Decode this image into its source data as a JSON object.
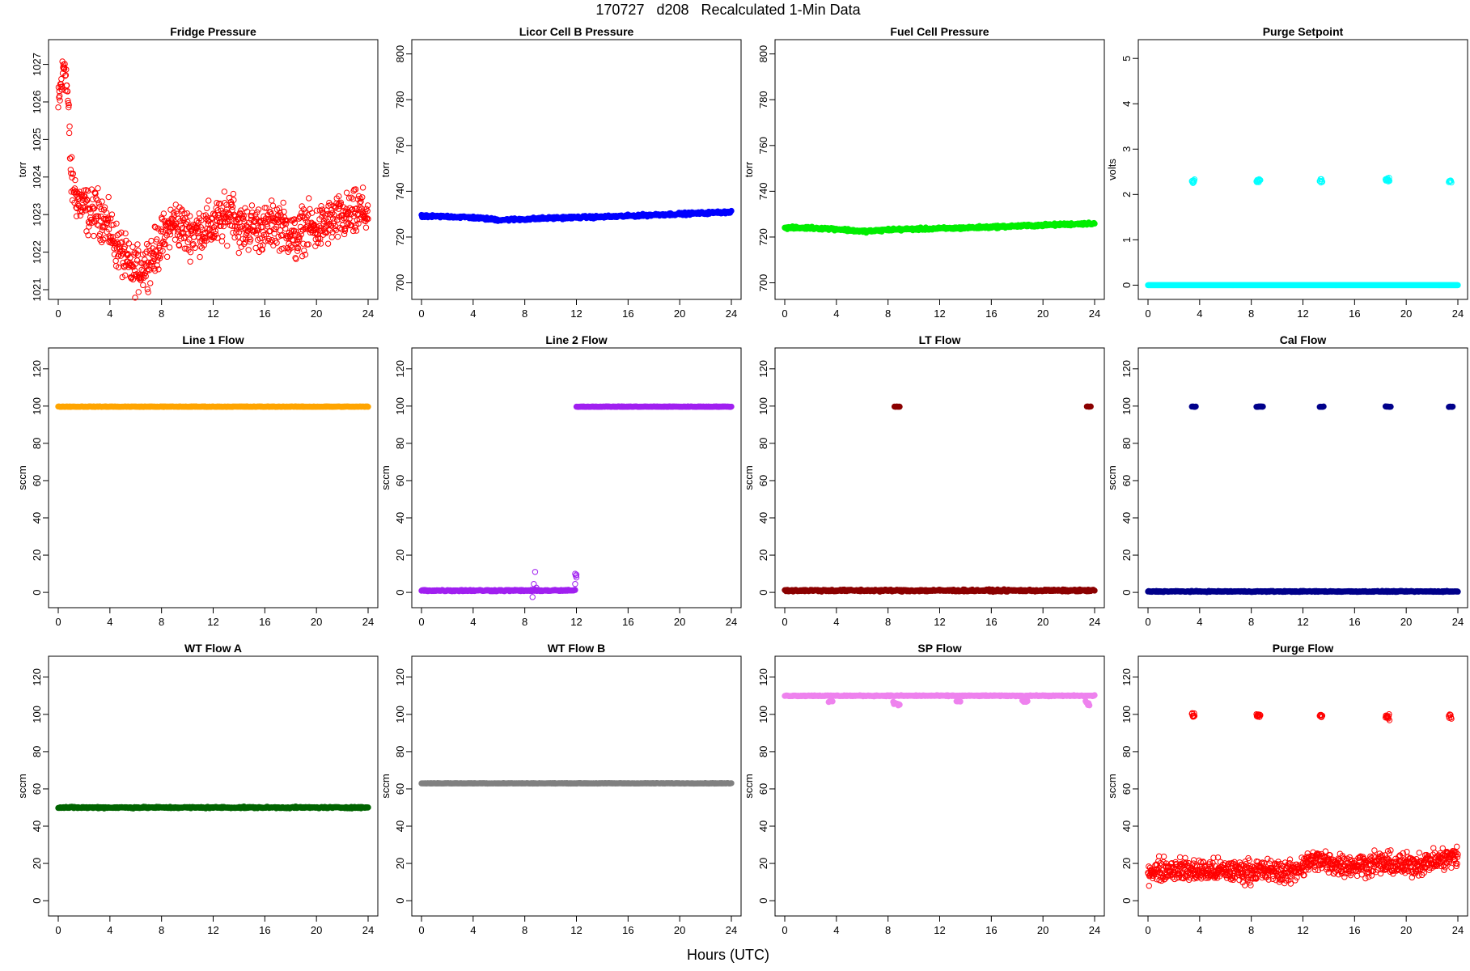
{
  "figure": {
    "title": "170727   d208   Recalculated 1-Min Data",
    "xlabel": "Hours (UTC)"
  },
  "chart_data": [
    {
      "type": "scatter",
      "title": "Fridge Pressure",
      "ylabel": "torr",
      "xlim": [
        0,
        24
      ],
      "ylim": [
        1021,
        1027.4
      ],
      "xticks": [
        0,
        4,
        8,
        12,
        16,
        20,
        24
      ],
      "yticks": [
        1021,
        1022,
        1023,
        1024,
        1025,
        1026,
        1027
      ],
      "color": "#ff0000",
      "marker": "open",
      "series": [
        {
          "x": [
            0.0,
            0.1,
            0.2,
            0.3,
            0.4,
            0.5,
            0.6,
            0.7,
            0.8,
            1.0,
            1.5,
            2.0,
            2.5,
            3.0,
            3.5,
            4.0,
            4.5,
            5.0,
            5.5,
            6.0,
            6.5,
            7.0,
            7.5,
            8.0,
            8.5,
            9.0,
            9.5,
            10.0,
            11.0,
            12.0,
            13.0,
            13.5,
            14.0,
            15.0,
            16.0,
            17.0,
            18.0,
            18.5,
            19.0,
            20.0,
            21.0,
            22.0,
            23.0,
            23.5,
            24.0
          ],
          "y": [
            1025.8,
            1026.1,
            1026.4,
            1026.6,
            1026.9,
            1027.1,
            1026.7,
            1026.3,
            1025.7,
            1023.9,
            1023.4,
            1023.2,
            1023.0,
            1023.1,
            1022.9,
            1022.6,
            1022.2,
            1021.9,
            1021.6,
            1021.5,
            1021.6,
            1021.8,
            1022.0,
            1022.3,
            1022.6,
            1022.8,
            1022.7,
            1022.5,
            1022.6,
            1022.7,
            1022.9,
            1023.2,
            1022.6,
            1022.7,
            1022.6,
            1022.8,
            1022.5,
            1022.3,
            1022.7,
            1022.6,
            1022.8,
            1022.9,
            1023.0,
            1023.1,
            1023.0
          ],
          "spread": 0.45
        }
      ]
    },
    {
      "type": "scatter",
      "title": "Licor Cell B Pressure",
      "ylabel": "torr",
      "xlim": [
        0,
        24
      ],
      "ylim": [
        697,
        802
      ],
      "xticks": [
        0,
        4,
        8,
        12,
        16,
        20,
        24
      ],
      "yticks": [
        700,
        720,
        740,
        760,
        780,
        800
      ],
      "color": "#0000ff",
      "marker": "filled",
      "series": [
        {
          "x": [
            0,
            2,
            4,
            6,
            8,
            10,
            12,
            14,
            16,
            18,
            20,
            22,
            24
          ],
          "y": [
            729,
            729,
            728.5,
            727.5,
            727.8,
            728.3,
            728.6,
            728.8,
            729.2,
            729.7,
            730.1,
            730.5,
            731
          ],
          "spread": 0.4
        }
      ]
    },
    {
      "type": "scatter",
      "title": "Fuel Cell Pressure",
      "ylabel": "torr",
      "xlim": [
        0,
        24
      ],
      "ylim": [
        697,
        802
      ],
      "xticks": [
        0,
        4,
        8,
        12,
        16,
        20,
        24
      ],
      "yticks": [
        700,
        720,
        740,
        760,
        780,
        800
      ],
      "color": "#00ee00",
      "marker": "filled",
      "series": [
        {
          "x": [
            0,
            2,
            4,
            6,
            7,
            8,
            10,
            12,
            14,
            16,
            18,
            20,
            22,
            24
          ],
          "y": [
            724,
            724,
            723.5,
            722.5,
            722.7,
            723.2,
            723.5,
            723.7,
            724,
            724.4,
            724.8,
            725.2,
            725.6,
            726
          ],
          "spread": 0.4
        }
      ]
    },
    {
      "type": "scatter",
      "title": "Purge Setpoint",
      "ylabel": "volts",
      "xlim": [
        0,
        24
      ],
      "ylim": [
        -0.1,
        5.2
      ],
      "xticks": [
        0,
        4,
        8,
        12,
        16,
        20,
        24
      ],
      "yticks": [
        0,
        1,
        2,
        3,
        4,
        5
      ],
      "color": "#00ffff",
      "marker": "open",
      "series": [
        {
          "x": [
            0,
            24
          ],
          "y": [
            0,
            0
          ],
          "spread": 0.0
        },
        {
          "x": [
            3.4,
            3.6
          ],
          "y": [
            2.3,
            2.3
          ],
          "spread": 0.03
        },
        {
          "x": [
            8.4,
            8.7
          ],
          "y": [
            2.3,
            2.33
          ],
          "spread": 0.03
        },
        {
          "x": [
            13.3,
            13.5
          ],
          "y": [
            2.3,
            2.3
          ],
          "spread": 0.04
        },
        {
          "x": [
            18.4,
            18.7
          ],
          "y": [
            2.31,
            2.33
          ],
          "spread": 0.03
        },
        {
          "x": [
            23.3,
            23.5
          ],
          "y": [
            2.3,
            2.3
          ],
          "spread": 0.03
        }
      ]
    },
    {
      "type": "scatter",
      "title": "Line 1 Flow",
      "ylabel": "sccm",
      "xlim": [
        0,
        24
      ],
      "ylim": [
        -3,
        126
      ],
      "xticks": [
        0,
        4,
        8,
        12,
        16,
        20,
        24
      ],
      "yticks": [
        0,
        20,
        40,
        60,
        80,
        100,
        120
      ],
      "color": "#ffa500",
      "marker": "filled",
      "series": [
        {
          "x": [
            0,
            24
          ],
          "y": [
            99.7,
            99.7
          ],
          "spread": 0.1
        }
      ]
    },
    {
      "type": "scatter",
      "title": "Line 2 Flow",
      "ylabel": "sccm",
      "xlim": [
        0,
        24
      ],
      "ylim": [
        -3,
        126
      ],
      "xticks": [
        0,
        4,
        8,
        12,
        16,
        20,
        24
      ],
      "yticks": [
        0,
        20,
        40,
        60,
        80,
        100,
        120
      ],
      "color": "#a020f0",
      "marker": "filled",
      "series": [
        {
          "x": [
            0,
            11.9
          ],
          "y": [
            1,
            1
          ],
          "spread": 0.3
        },
        {
          "x": [
            12,
            24
          ],
          "y": [
            99.7,
            99.7
          ],
          "spread": 0.1
        },
        {
          "x": [
            8.7,
            8.8,
            8.9,
            8.6,
            11.9,
            11.95,
            12.0,
            11.9,
            12.0
          ],
          "y": [
            4.5,
            11,
            2.5,
            -2.5,
            10,
            9,
            8,
            4.5,
            9.5
          ],
          "spread": 0,
          "points": true
        }
      ]
    },
    {
      "type": "scatter",
      "title": "LT Flow",
      "ylabel": "sccm",
      "xlim": [
        0,
        24
      ],
      "ylim": [
        -3,
        126
      ],
      "xticks": [
        0,
        4,
        8,
        12,
        16,
        20,
        24
      ],
      "yticks": [
        0,
        20,
        40,
        60,
        80,
        100,
        120
      ],
      "color": "#8b0000",
      "marker": "filled",
      "series": [
        {
          "x": [
            0,
            24
          ],
          "y": [
            1,
            1
          ],
          "spread": 0.4
        },
        {
          "x": [
            8.5,
            8.9
          ],
          "y": [
            99.7,
            99.7
          ],
          "spread": 0.1
        },
        {
          "x": [
            23.4,
            23.7
          ],
          "y": [
            99.7,
            99.7
          ],
          "spread": 0.1
        }
      ]
    },
    {
      "type": "scatter",
      "title": "Cal Flow",
      "ylabel": "sccm",
      "xlim": [
        0,
        24
      ],
      "ylim": [
        -3,
        126
      ],
      "xticks": [
        0,
        4,
        8,
        12,
        16,
        20,
        24
      ],
      "yticks": [
        0,
        20,
        40,
        60,
        80,
        100,
        120
      ],
      "color": "#00008b",
      "marker": "filled",
      "series": [
        {
          "x": [
            0,
            24
          ],
          "y": [
            0.5,
            0.5
          ],
          "spread": 0.2
        },
        {
          "x": [
            3.4,
            3.7
          ],
          "y": [
            99.7,
            99.7
          ],
          "spread": 0.1
        },
        {
          "x": [
            8.4,
            8.9
          ],
          "y": [
            99.7,
            99.7
          ],
          "spread": 0.1
        },
        {
          "x": [
            13.3,
            13.6
          ],
          "y": [
            99.7,
            99.7
          ],
          "spread": 0.1
        },
        {
          "x": [
            18.4,
            18.8
          ],
          "y": [
            99.7,
            99.7
          ],
          "spread": 0.1
        },
        {
          "x": [
            23.3,
            23.6
          ],
          "y": [
            99.7,
            99.7
          ],
          "spread": 0.1
        }
      ]
    },
    {
      "type": "scatter",
      "title": "WT Flow A",
      "ylabel": "sccm",
      "xlim": [
        0,
        24
      ],
      "ylim": [
        -3,
        126
      ],
      "xticks": [
        0,
        4,
        8,
        12,
        16,
        20,
        24
      ],
      "yticks": [
        0,
        20,
        40,
        60,
        80,
        100,
        120
      ],
      "color": "#006400",
      "marker": "filled",
      "series": [
        {
          "x": [
            0,
            24
          ],
          "y": [
            50,
            50
          ],
          "spread": 0.3
        }
      ]
    },
    {
      "type": "scatter",
      "title": "WT Flow B",
      "ylabel": "sccm",
      "xlim": [
        0,
        24
      ],
      "ylim": [
        -3,
        126
      ],
      "xticks": [
        0,
        4,
        8,
        12,
        16,
        20,
        24
      ],
      "yticks": [
        0,
        20,
        40,
        60,
        80,
        100,
        120
      ],
      "color": "#808080",
      "marker": "filled",
      "series": [
        {
          "x": [
            0,
            24
          ],
          "y": [
            63,
            63
          ],
          "spread": 0.1
        }
      ]
    },
    {
      "type": "scatter",
      "title": "SP Flow",
      "ylabel": "sccm",
      "xlim": [
        0,
        24
      ],
      "ylim": [
        -3,
        126
      ],
      "xticks": [
        0,
        4,
        8,
        12,
        16,
        20,
        24
      ],
      "yticks": [
        0,
        20,
        40,
        60,
        80,
        100,
        120
      ],
      "color": "#ee82ee",
      "marker": "filled",
      "series": [
        {
          "x": [
            0,
            24
          ],
          "y": [
            110,
            110
          ],
          "spread": 0.2
        },
        {
          "x": [
            3.4,
            3.7
          ],
          "y": [
            107,
            107
          ],
          "spread": 0.3
        },
        {
          "x": [
            8.4,
            8.9
          ],
          "y": [
            106.5,
            105
          ],
          "spread": 0.5
        },
        {
          "x": [
            13.3,
            13.6
          ],
          "y": [
            107,
            107
          ],
          "spread": 0.3
        },
        {
          "x": [
            18.4,
            18.8
          ],
          "y": [
            107,
            107
          ],
          "spread": 0.3
        },
        {
          "x": [
            23.3,
            23.6
          ],
          "y": [
            106.5,
            105
          ],
          "spread": 0.5
        }
      ]
    },
    {
      "type": "scatter",
      "title": "Purge Flow",
      "ylabel": "sccm",
      "xlim": [
        0,
        24
      ],
      "ylim": [
        -3,
        126
      ],
      "xticks": [
        0,
        4,
        8,
        12,
        16,
        20,
        24
      ],
      "yticks": [
        0,
        20,
        40,
        60,
        80,
        100,
        120
      ],
      "color": "#ff0000",
      "marker": "open",
      "series": [
        {
          "x": [
            0,
            2,
            4,
            6,
            8,
            10,
            11,
            12,
            13,
            14,
            16,
            18,
            20,
            22,
            24
          ],
          "y": [
            16,
            17,
            16,
            16,
            16,
            16,
            15,
            19,
            22,
            20,
            19,
            20,
            19,
            21,
            24
          ],
          "spread": 4.5
        },
        {
          "x": [
            3.4,
            3.6
          ],
          "y": [
            100,
            99
          ],
          "spread": 1.2
        },
        {
          "x": [
            8.4,
            8.7
          ],
          "y": [
            99.5,
            99
          ],
          "spread": 1.2
        },
        {
          "x": [
            13.3,
            13.5
          ],
          "y": [
            99.5,
            99.5
          ],
          "spread": 1.0
        },
        {
          "x": [
            18.4,
            18.7
          ],
          "y": [
            99,
            98.5
          ],
          "spread": 1.5
        },
        {
          "x": [
            23.3,
            23.5
          ],
          "y": [
            99,
            98.5
          ],
          "spread": 1.2
        }
      ]
    }
  ]
}
